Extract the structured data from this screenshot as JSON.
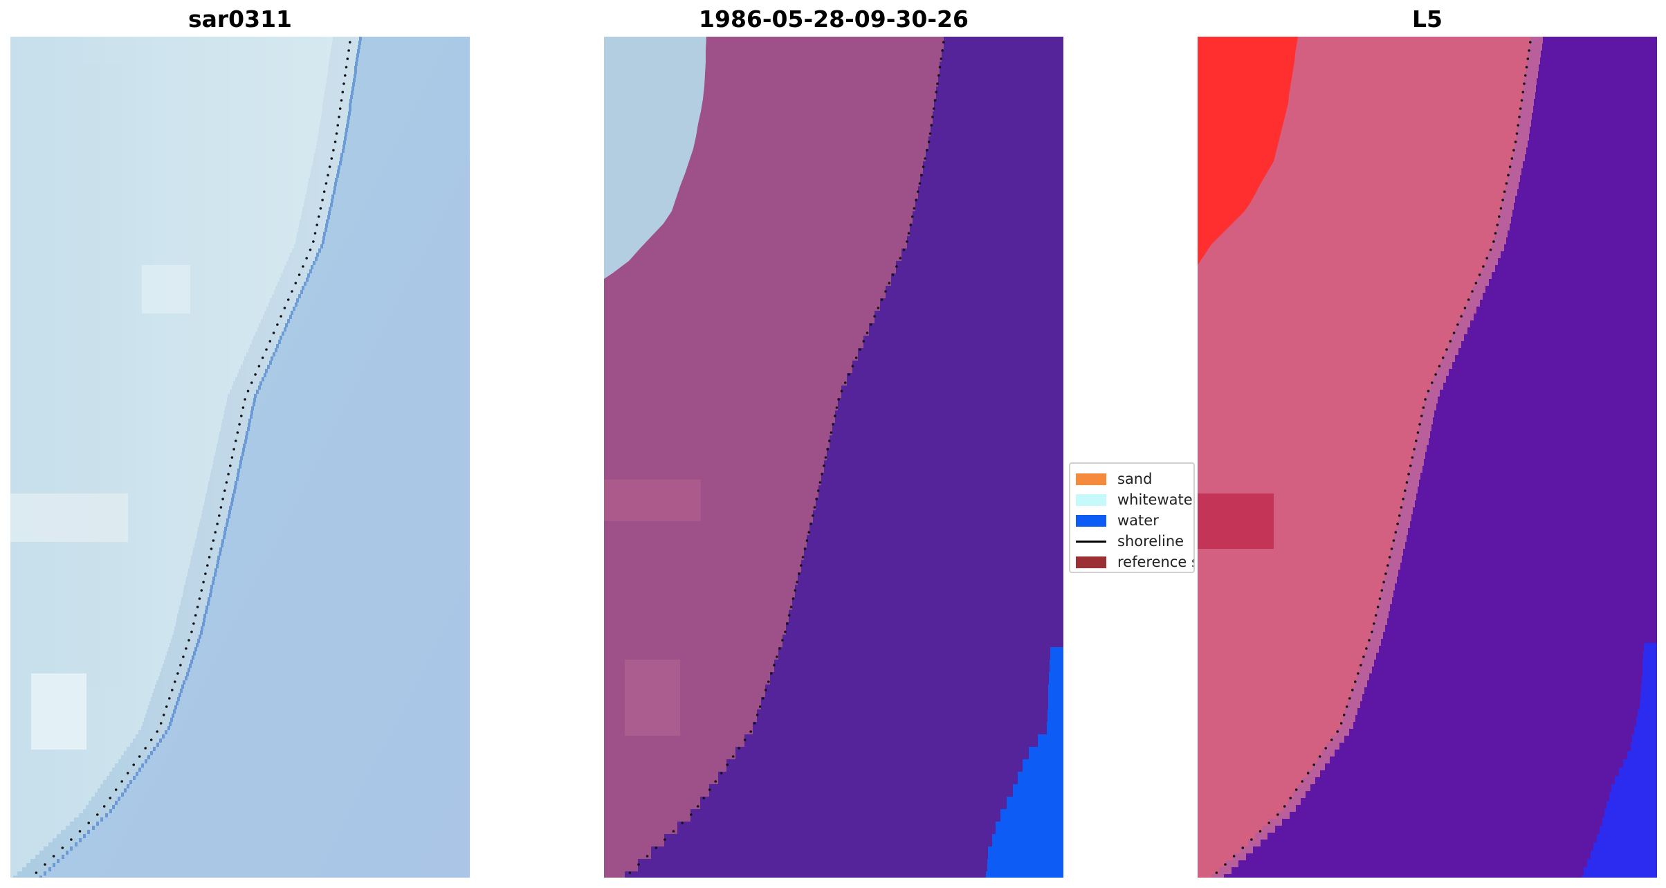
{
  "panels": [
    {
      "title": "sar0311"
    },
    {
      "title": "1986-05-28-09-30-26"
    },
    {
      "title": "L5"
    }
  ],
  "legend": {
    "items": [
      {
        "label": "sand",
        "color": "#f58a3c",
        "kind": "patch"
      },
      {
        "label": "whitewater",
        "color": "#c6fafa",
        "kind": "patch"
      },
      {
        "label": "water",
        "color": "#0d5cf5",
        "kind": "patch"
      },
      {
        "label": "shoreline",
        "color": "#000000",
        "kind": "line"
      },
      {
        "label": "reference s",
        "color": "#9b2f33",
        "kind": "patch"
      }
    ]
  },
  "colors": {
    "rgb_land": "#b8d2e6",
    "rgb_water": "#6f9fd6",
    "class_land": "#9e5088",
    "class_whitewater": "#b3cee0",
    "class_ocean": "#55249b",
    "class_water": "#0d5cf5",
    "index_land": "#c3173f",
    "index_bright": "#ff2f2f",
    "index_ocean": "#5e17a4",
    "index_water": "#2b2cf0",
    "shoreline": "#111111"
  }
}
